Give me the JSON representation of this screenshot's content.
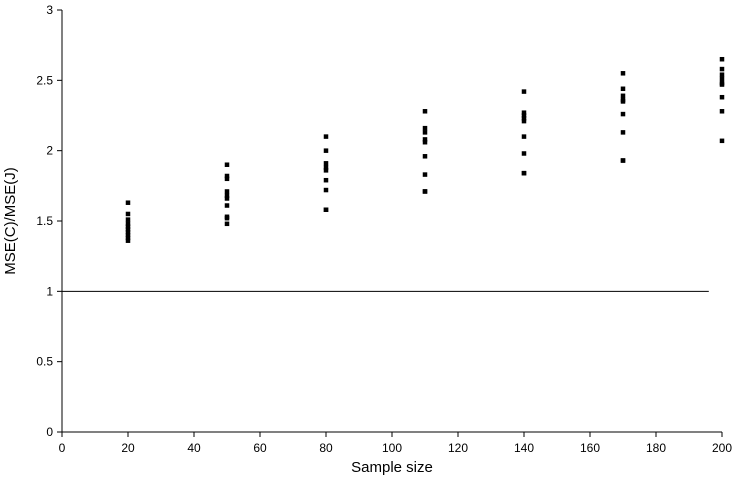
{
  "chart_data": {
    "type": "scatter",
    "title": "",
    "xlabel": "Sample size",
    "ylabel": "MSE(C)/MSE(J)",
    "xlim": [
      0,
      200
    ],
    "ylim": [
      0,
      3
    ],
    "xticks": [
      "0",
      "20",
      "40",
      "60",
      "80",
      "100",
      "120",
      "140",
      "160",
      "180",
      "200"
    ],
    "yticks": [
      "0",
      "0.5",
      "1",
      "1.5",
      "2",
      "2.5",
      "3"
    ],
    "grid": false,
    "legend": "none",
    "reference_line": {
      "y": 1,
      "x_range": [
        0,
        196
      ]
    },
    "marker": "square",
    "marker_color": "#000000",
    "series": [
      {
        "x": [
          20,
          20,
          20,
          20,
          20,
          20,
          20,
          20,
          20,
          20,
          50,
          50,
          50,
          50,
          50,
          50,
          50,
          50,
          50,
          50,
          80,
          80,
          80,
          80,
          80,
          80,
          80,
          80,
          80,
          110,
          110,
          110,
          110,
          110,
          110,
          110,
          110,
          110,
          140,
          140,
          140,
          140,
          140,
          140,
          140,
          140,
          140,
          170,
          170,
          170,
          170,
          170,
          170,
          170,
          170,
          170,
          200,
          200,
          200,
          200,
          200,
          200,
          200,
          200,
          200
        ],
        "y": [
          1.63,
          1.55,
          1.51,
          1.48,
          1.46,
          1.44,
          1.42,
          1.4,
          1.38,
          1.36,
          1.9,
          1.82,
          1.8,
          1.71,
          1.68,
          1.66,
          1.61,
          1.53,
          1.52,
          1.48,
          2.1,
          2.0,
          1.91,
          1.88,
          1.86,
          1.79,
          1.72,
          1.58,
          1.58,
          2.28,
          2.16,
          2.13,
          2.08,
          2.06,
          1.96,
          1.83,
          1.71,
          1.71,
          2.42,
          2.27,
          2.25,
          2.23,
          2.21,
          2.1,
          1.98,
          1.84,
          1.84,
          2.55,
          2.44,
          2.39,
          2.36,
          2.35,
          2.26,
          2.13,
          1.93,
          1.93,
          2.65,
          2.58,
          2.54,
          2.51,
          2.48,
          2.47,
          2.38,
          2.28,
          2.07
        ]
      }
    ]
  }
}
